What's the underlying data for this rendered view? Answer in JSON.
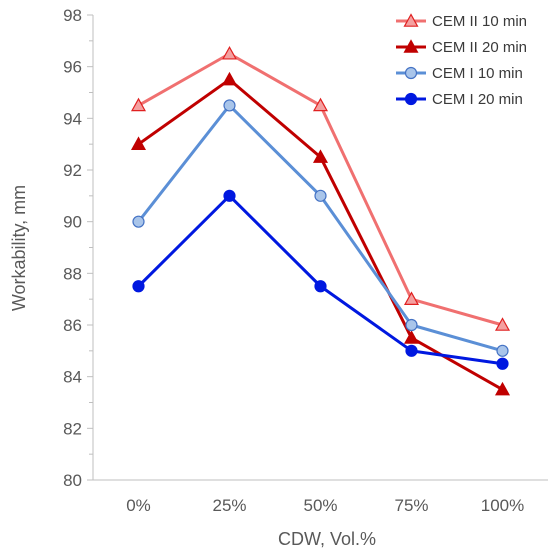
{
  "chart_data": {
    "type": "line",
    "xlabel": "CDW, Vol.%",
    "ylabel": "Workability, mm",
    "categories": [
      "0%",
      "25%",
      "50%",
      "75%",
      "100%"
    ],
    "ylim": [
      80,
      98
    ],
    "ytick_step": 2,
    "yticks": [
      "80",
      "82",
      "84",
      "86",
      "88",
      "90",
      "92",
      "94",
      "96",
      "98"
    ],
    "grid": false,
    "legend_position": "top-right",
    "series": [
      {
        "name": "CEM II 10 min",
        "values": [
          94.5,
          96.5,
          94.5,
          87,
          86
        ],
        "color": "#f07070",
        "marker": "triangle",
        "marker_fill": "#f4a0a0",
        "marker_stroke": "#e02020"
      },
      {
        "name": "CEM II 20 min",
        "values": [
          93,
          95.5,
          92.5,
          85.5,
          83.5
        ],
        "color": "#c00000",
        "marker": "triangle",
        "marker_fill": "#c00000",
        "marker_stroke": "#c00000"
      },
      {
        "name": "CEM I 10 min",
        "values": [
          90,
          94.5,
          91,
          86,
          85
        ],
        "color": "#5b8fd6",
        "marker": "circle",
        "marker_fill": "#a9c5ea",
        "marker_stroke": "#4472c4"
      },
      {
        "name": "CEM I 20 min",
        "values": [
          87.5,
          91,
          87.5,
          85,
          84.5
        ],
        "color": "#0018e0",
        "marker": "circle",
        "marker_fill": "#0018e0",
        "marker_stroke": "#0018e0"
      }
    ]
  }
}
